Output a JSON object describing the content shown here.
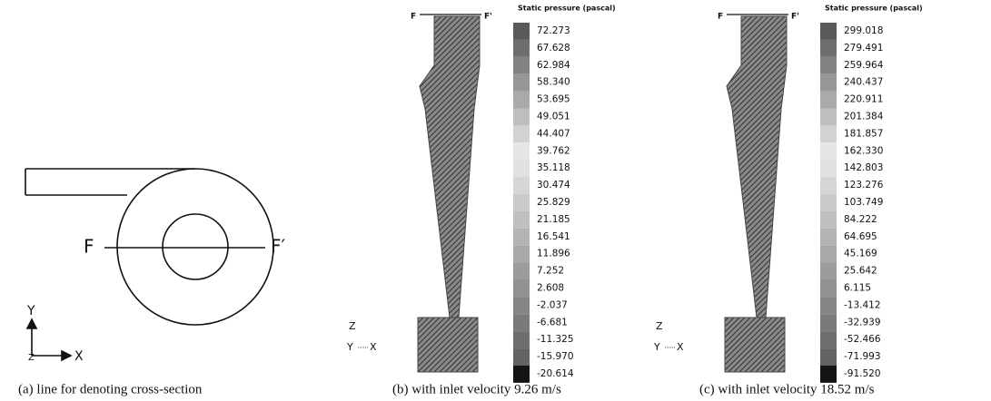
{
  "panels": [
    {
      "caption": "(a) line for denoting cross-section",
      "labels": {
        "f": "F",
        "f_prime": "F′",
        "y": "Y",
        "z": "Z",
        "x": "X"
      }
    },
    {
      "caption": "(b) with inlet velocity 9.26 m/s",
      "section_labels": {
        "f": "F",
        "f_prime": "F'"
      },
      "legend_title": "Static pressure (pascal)",
      "legend_values": [
        "72.273",
        "67.628",
        "62.984",
        "58.340",
        "53.695",
        "49.051",
        "44.407",
        "39.762",
        "35.118",
        "30.474",
        "25.829",
        "21.185",
        "16.541",
        "11.896",
        "7.252",
        "2.608",
        "-2.037",
        "-6.681",
        "-11.325",
        "-15.970",
        "-20.614"
      ],
      "axes": {
        "z": "Z",
        "y": "Y",
        "x": "X"
      }
    },
    {
      "caption": "(c) with inlet velocity 18.52 m/s",
      "section_labels": {
        "f": "F",
        "f_prime": "F'"
      },
      "legend_title": "Static pressure (pascal)",
      "legend_values": [
        "299.018",
        "279.491",
        "259.964",
        "240.437",
        "220.911",
        "201.384",
        "181.857",
        "162.330",
        "142.803",
        "123.276",
        "103.749",
        "84.222",
        "64.695",
        "45.169",
        "25.642",
        "6.115",
        "-13.412",
        "-32.939",
        "-52.466",
        "-71.993",
        "-91.520"
      ],
      "axes": {
        "z": "Z",
        "y": "Y",
        "x": "X"
      }
    }
  ]
}
